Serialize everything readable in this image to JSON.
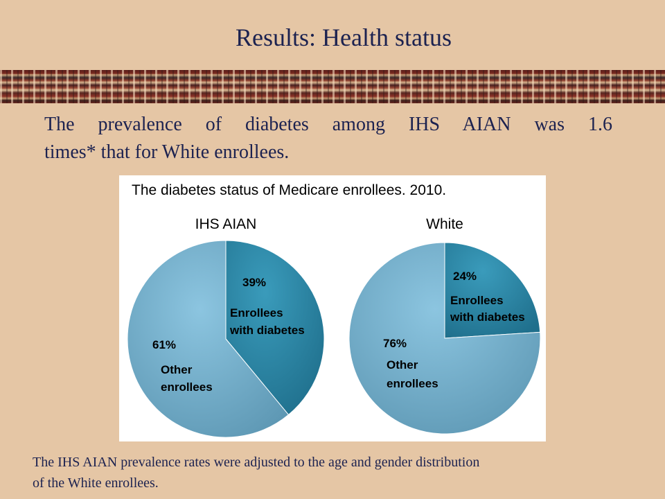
{
  "slide": {
    "title": "Results: Health status",
    "subtitle_line1": "The prevalence of diabetes among IHS AIAN was 1.6",
    "subtitle_line2": "times* that for White enrollees.",
    "footnote_line1": "The IHS AIAN prevalence rates were adjusted to the age and gender distribution",
    "footnote_line2": "of the White enrollees."
  },
  "colors": {
    "background": "#E5C6A5",
    "text": "#1C2250",
    "diabetes_slice": "#2F8FAE",
    "other_slice": "#7FB9D6"
  },
  "chart_data": {
    "type": "pie",
    "title": "The diabetes status of Medicare enrollees. 2010.",
    "pies": [
      {
        "name": "IHS AIAN",
        "slices": [
          {
            "label_line1": "Enrollees",
            "label_line2": "with diabetes",
            "value": 39,
            "value_label": "39%"
          },
          {
            "label_line1": "Other",
            "label_line2": "enrollees",
            "value": 61,
            "value_label": "61%"
          }
        ]
      },
      {
        "name": "White",
        "slices": [
          {
            "label_line1": "Enrollees",
            "label_line2": "with diabetes",
            "value": 24,
            "value_label": "24%"
          },
          {
            "label_line1": "Other",
            "label_line2": "enrollees",
            "value": 76,
            "value_label": "76%"
          }
        ]
      }
    ]
  }
}
